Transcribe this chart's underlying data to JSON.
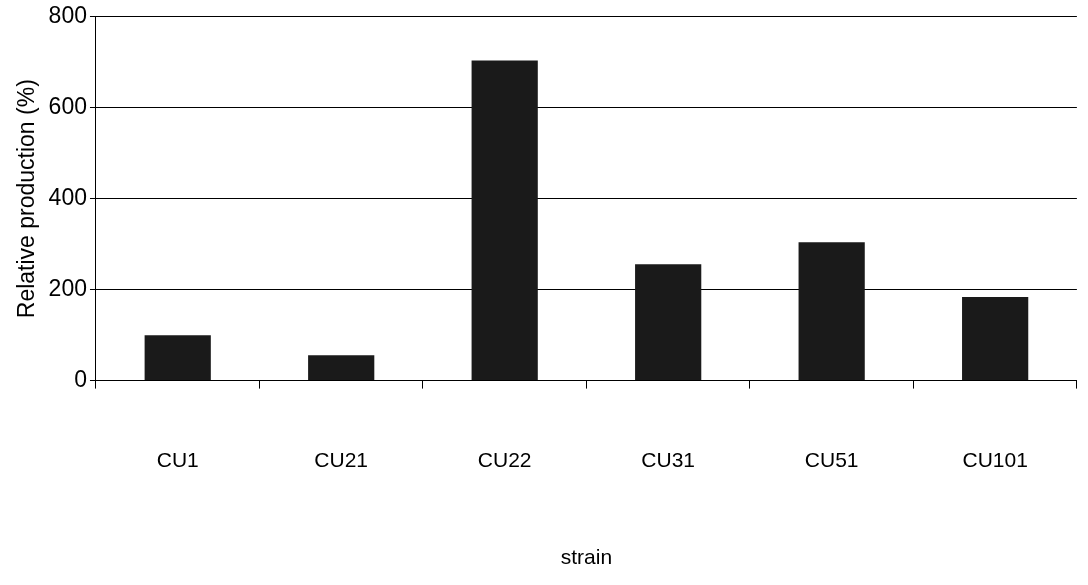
{
  "chart_data": {
    "type": "bar",
    "xlabel": "strain",
    "ylabel": "Relative production (%)",
    "categories": [
      "CU1",
      "CU21",
      "CU22",
      "CU31",
      "CU51",
      "CU101"
    ],
    "values": [
      100,
      56,
      704,
      256,
      304,
      184
    ],
    "color": "#1a1a1a",
    "ylim": [
      0,
      800
    ],
    "yticks": [
      0,
      200,
      400,
      600,
      800
    ],
    "grid": "y",
    "legend": false
  }
}
